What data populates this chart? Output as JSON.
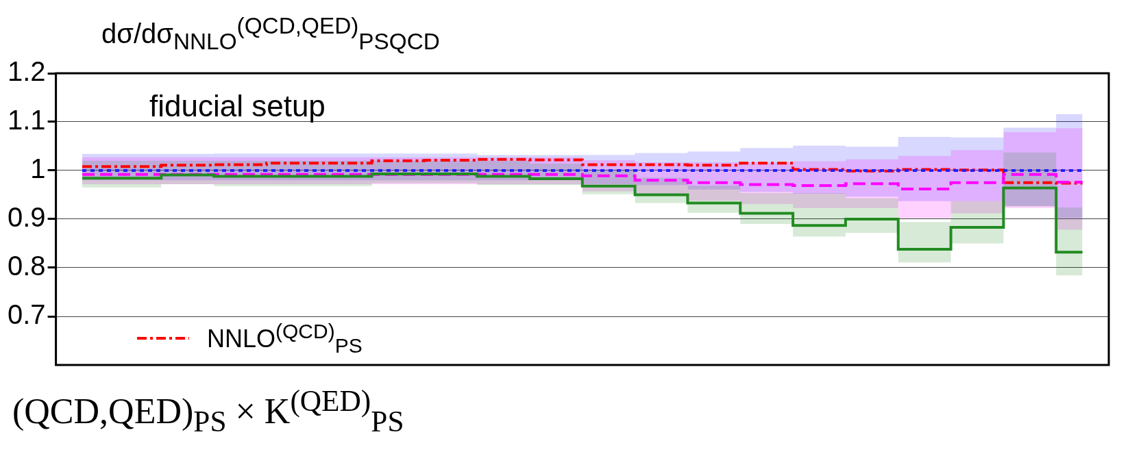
{
  "chart_data": {
    "type": "step",
    "title": "dσ/dσ$_{NNLO}$$^{(QCD,QED)}$$_{PS}$$_{QCD}$",
    "categories": [
      null,
      null,
      null,
      null,
      null,
      null,
      null,
      null,
      null,
      null,
      null,
      null,
      null,
      null,
      null,
      null,
      null,
      null,
      null,
      null
    ],
    "series": [
      {
        "color": "#228b22",
        "line_style": "solid",
        "values": [
          0.984,
          0.984,
          0.991,
          0.988,
          0.988,
          0.988,
          0.993,
          0.993,
          0.988,
          0.983,
          0.968,
          0.95,
          0.933,
          0.912,
          0.887,
          0.9,
          0.838,
          0.883,
          0.964,
          0.832
        ],
        "lower": [
          0.965,
          0.965,
          0.972,
          0.968,
          0.968,
          0.968,
          0.974,
          0.974,
          0.97,
          0.97,
          0.951,
          0.933,
          0.913,
          0.89,
          0.864,
          0.872,
          0.811,
          0.85,
          0.926,
          0.784
        ],
        "upper": [
          1.02,
          1.02,
          1.02,
          1.02,
          1.02,
          1.02,
          1.02,
          1.02,
          1.02,
          1.014,
          1.002,
          0.985,
          0.969,
          0.954,
          0.953,
          0.943,
          0.894,
          0.937,
          1.037,
          0.924
        ]
      },
      {
        "color": "#ff00ff",
        "line_style": "dashed",
        "values": [
          0.992,
          0.992,
          0.992,
          0.992,
          0.992,
          0.992,
          0.992,
          0.992,
          0.992,
          0.992,
          0.989,
          0.98,
          0.975,
          0.971,
          0.969,
          0.973,
          0.962,
          0.975,
          0.992,
          0.976
        ],
        "lower": [
          0.972,
          0.972,
          0.972,
          0.972,
          0.972,
          0.972,
          0.972,
          0.972,
          0.972,
          0.972,
          0.957,
          0.95,
          0.938,
          0.931,
          0.923,
          0.923,
          0.902,
          0.912,
          0.923,
          0.878
        ],
        "upper": [
          1.027,
          1.027,
          1.027,
          1.027,
          1.027,
          1.027,
          1.027,
          1.027,
          1.027,
          1.027,
          1.021,
          1.017,
          1.017,
          1.017,
          1.019,
          1.023,
          1.03,
          1.042,
          1.079,
          1.087
        ]
      },
      {
        "color": "#2020ff",
        "line_style": "dotted",
        "values": [
          1,
          1,
          1,
          1,
          1,
          1,
          1,
          1,
          1,
          1,
          1,
          1,
          1,
          1,
          1,
          1,
          1,
          1,
          1,
          1
        ],
        "lower": [
          0.98,
          0.98,
          0.98,
          0.98,
          0.98,
          0.98,
          0.98,
          0.98,
          0.98,
          0.98,
          0.972,
          0.97,
          0.961,
          0.956,
          0.952,
          0.946,
          0.937,
          0.937,
          0.927,
          0.902
        ],
        "upper": [
          1.034,
          1.034,
          1.034,
          1.035,
          1.035,
          1.035,
          1.035,
          1.035,
          1.032,
          1.032,
          1.032,
          1.036,
          1.039,
          1.046,
          1.051,
          1.049,
          1.069,
          1.068,
          1.088,
          1.116
        ]
      },
      {
        "name": "NNLO$^{(QCD)}$$_{PS}$",
        "color": "#ff0000",
        "line_style": "dashdot",
        "values": [
          1.008,
          1.008,
          1.011,
          1.012,
          1.015,
          1.015,
          1.02,
          1.021,
          1.023,
          1.022,
          1.012,
          1.012,
          1.011,
          1.015,
          1.002,
          0.999,
          1.002,
          1.001,
          0.975,
          0.974
        ]
      }
    ],
    "ylim": [
      0.6,
      1.2
    ],
    "yticks": [
      0.7,
      0.8,
      0.9,
      1,
      1.1,
      1.2
    ],
    "grid": "y",
    "tick_labels": "y",
    "legend": "bottom left",
    "annotations": [
      "fiducial setup",
      "(QCD,QED)$_{PS}$ × K$^{(QED)}$$_{PS}$"
    ]
  }
}
